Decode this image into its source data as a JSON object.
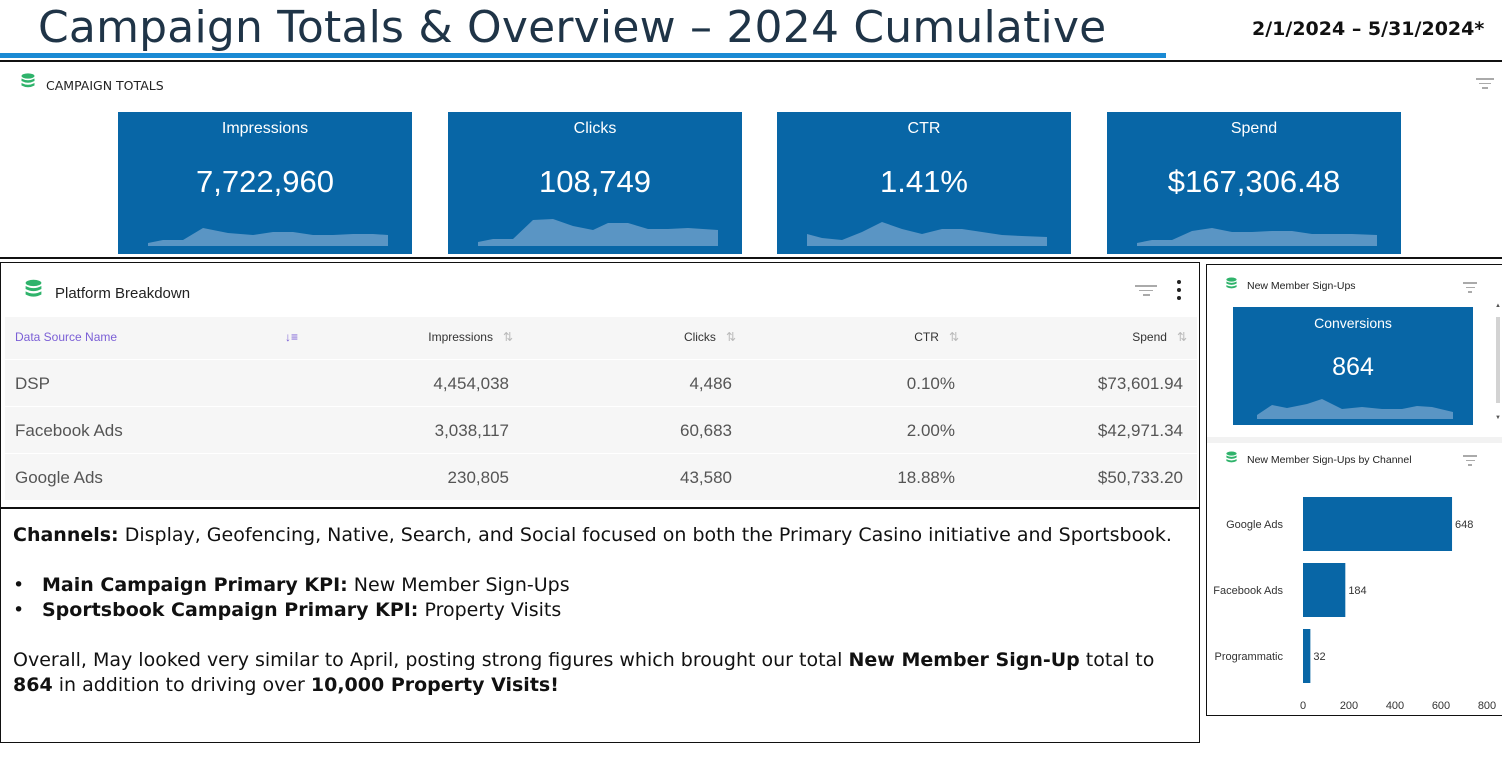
{
  "header": {
    "title": "Campaign Totals & Overview – 2024 Cumulative",
    "date_range": "2/1/2024 – 5/31/2024*"
  },
  "campaign_totals": {
    "label": "CAMPAIGN TOTALS",
    "kpis": [
      {
        "label": "Impressions",
        "value": "7,722,960"
      },
      {
        "label": "Clicks",
        "value": "108,749"
      },
      {
        "label": "CTR",
        "value": "1.41%"
      },
      {
        "label": "Spend",
        "value": "$167,306.48"
      }
    ]
  },
  "platform_breakdown": {
    "label": "Platform Breakdown",
    "columns": [
      "Data Source Name",
      "Impressions",
      "Clicks",
      "CTR",
      "Spend"
    ],
    "rows": [
      [
        "DSP",
        "4,454,038",
        "4,486",
        "0.10%",
        "$73,601.94"
      ],
      [
        "Facebook Ads",
        "3,038,117",
        "60,683",
        "2.00%",
        "$42,971.34"
      ],
      [
        "Google Ads",
        "230,805",
        "43,580",
        "18.88%",
        "$50,733.20"
      ]
    ]
  },
  "notes": {
    "channels_label": "Channels:",
    "channels_text": " Display,  Geofencing, Native, Search, and Social focused on both the Primary Casino initiative and Sportsbook.",
    "bullets": [
      {
        "label": "Main Campaign Primary KPI:",
        "text": " New Member Sign-Ups"
      },
      {
        "label": "Sportsbook Campaign Primary KPI:",
        "text": " Property Visits"
      }
    ],
    "overall_text_1": "Overall, May looked very similar to April, posting strong figures which brought our total ",
    "overall_bold_1": "New Member Sign-Up",
    "overall_text_2": " total to ",
    "overall_bold_2": "864",
    "overall_text_3": " in addition to driving over ",
    "overall_bold_3": "10,000 Property Visits!"
  },
  "new_member_signups": {
    "label": "New Member Sign-Ups",
    "kpi_label": "Conversions",
    "kpi_value": "864"
  },
  "signups_by_channel": {
    "label": "New Member Sign-Ups by Channel"
  },
  "chart_data": {
    "type": "bar",
    "orientation": "horizontal",
    "categories": [
      "Google Ads",
      "Facebook Ads",
      "Programmatic"
    ],
    "values": [
      648,
      184,
      32
    ],
    "value_labels": [
      "648",
      "184",
      "32"
    ],
    "xlim": [
      0,
      800
    ],
    "x_ticks": [
      "0",
      "200",
      "400",
      "600",
      "800"
    ],
    "grid": false,
    "bar_color": "#0866a6"
  },
  "colors": {
    "accent": "#1a8ad4",
    "tile": "#0866a6",
    "sort_active": "#7b5fd6"
  }
}
